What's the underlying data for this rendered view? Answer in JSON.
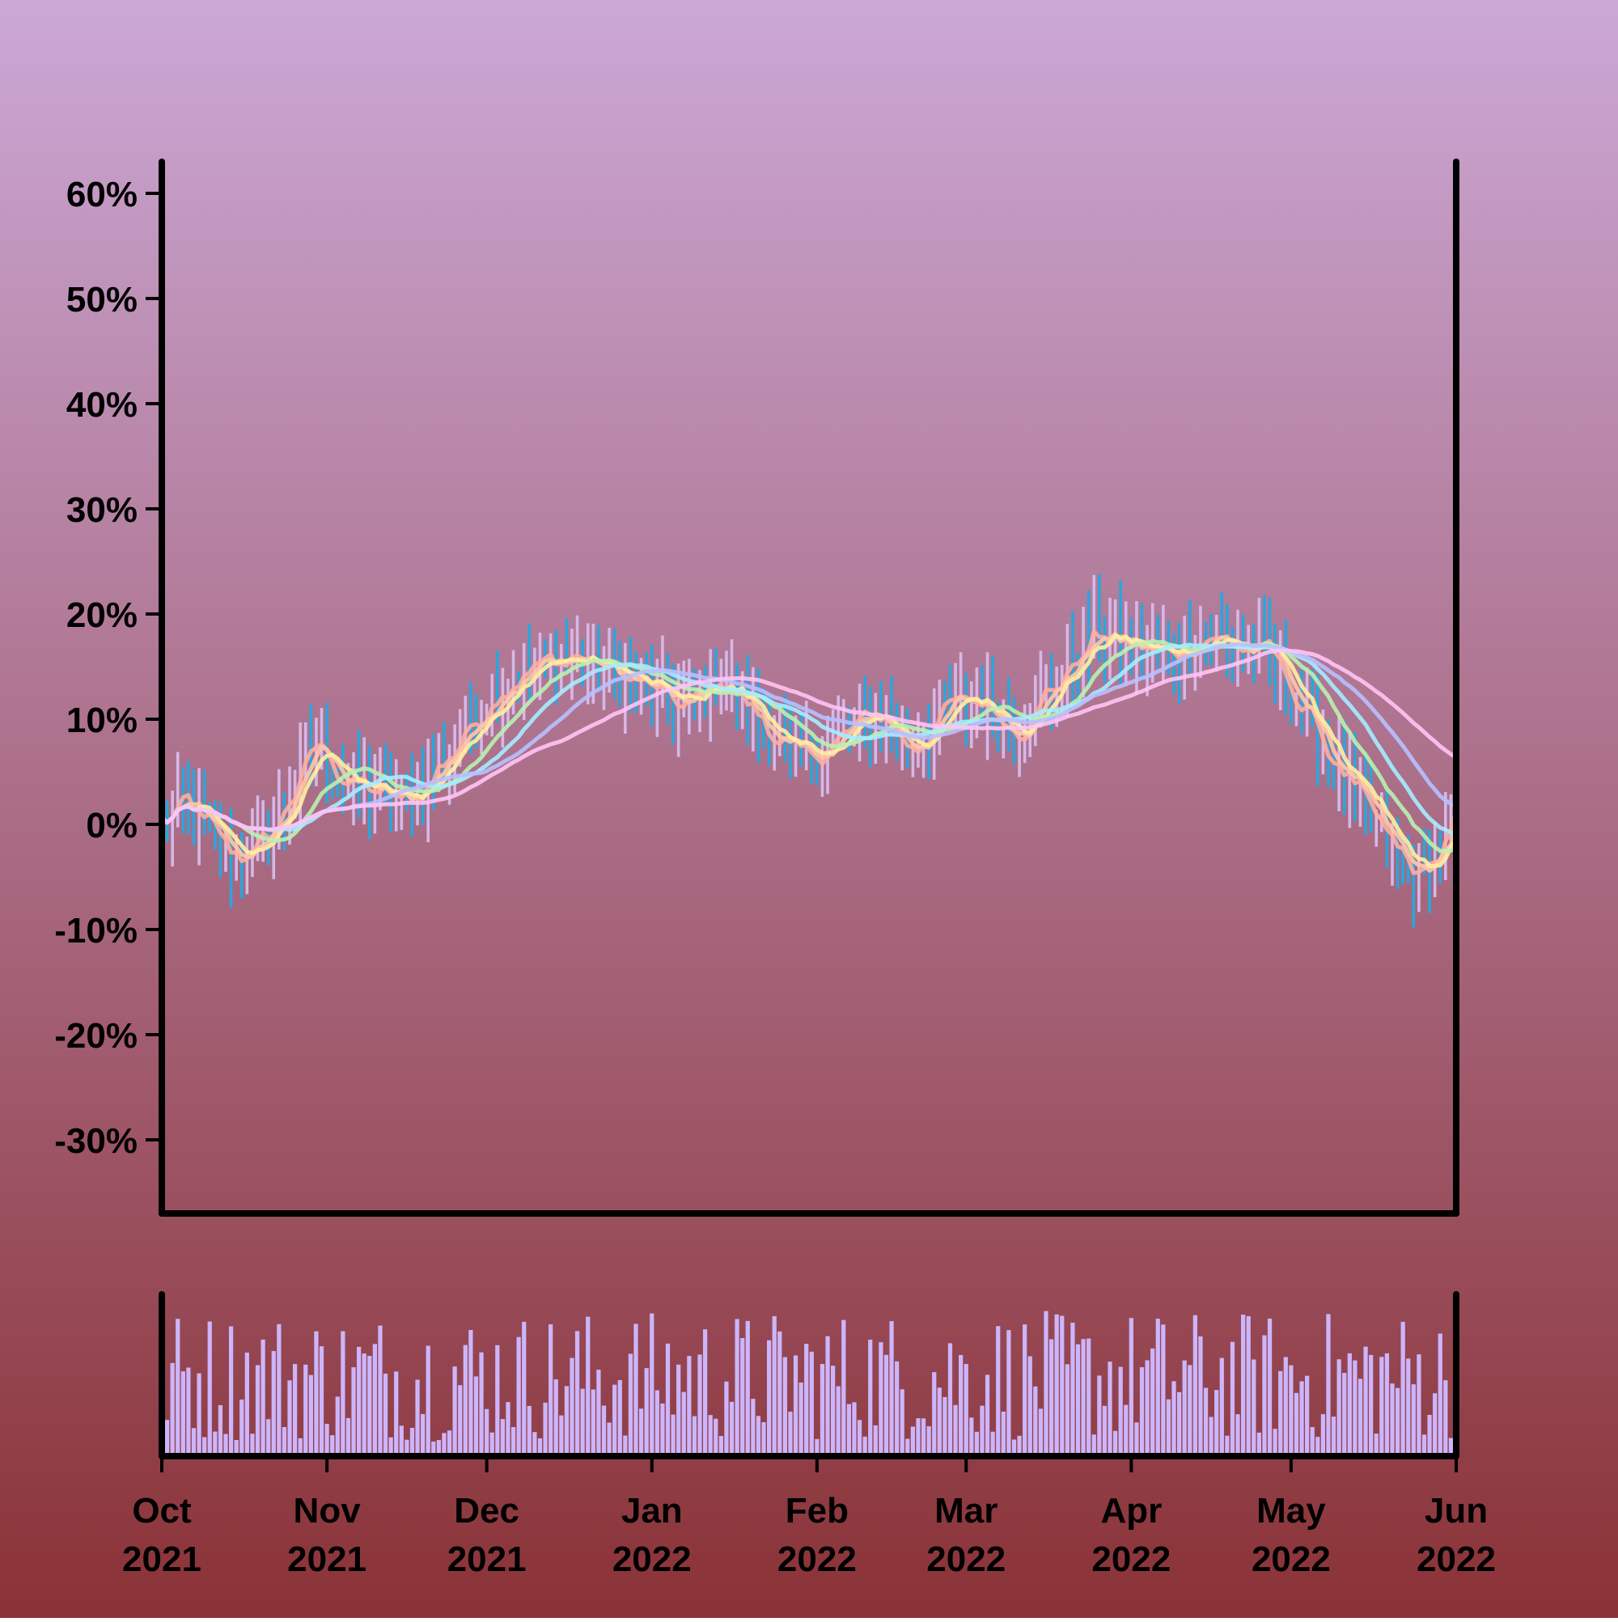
{
  "colors": {
    "background_top": "#cba8d6",
    "background_bottom": "#8a3236",
    "up_bar": "#d5b8e8",
    "down_bar": "#2aa6dc",
    "volume_bar": "#ccb5fb",
    "axis": "#000000",
    "ma_lines": [
      "#ffaea0",
      "#ffc8a8",
      "#fff0a0",
      "#b8f2b0",
      "#a6ecff",
      "#b8c0ff",
      "#ffc4f4"
    ]
  },
  "chart_data": [
    {
      "type": "candlestick",
      "title": "",
      "xlabel": "",
      "ylabel": "",
      "y_unit": "%",
      "ylim": [
        -37,
        63
      ],
      "xlim": [
        "2021-10-01",
        "2022-06-01"
      ],
      "grid": false,
      "y_ticks": [
        "-30%",
        "-20%",
        "-10%",
        "0%",
        "10%",
        "20%",
        "30%",
        "40%",
        "50%",
        "60%"
      ],
      "y_tick_values": [
        -30,
        -20,
        -10,
        0,
        10,
        20,
        30,
        40,
        50,
        60
      ],
      "price_anchors": [
        {
          "date": "2021-10-01",
          "value": 0
        },
        {
          "date": "2021-10-05",
          "value": 2
        },
        {
          "date": "2021-10-14",
          "value": -3
        },
        {
          "date": "2021-10-20",
          "value": -2
        },
        {
          "date": "2021-10-26",
          "value": 4
        },
        {
          "date": "2021-10-30",
          "value": 8
        },
        {
          "date": "2021-11-04",
          "value": 4
        },
        {
          "date": "2021-11-10",
          "value": 3
        },
        {
          "date": "2021-11-16",
          "value": 2
        },
        {
          "date": "2021-11-24",
          "value": 7
        },
        {
          "date": "2021-12-03",
          "value": 13
        },
        {
          "date": "2021-12-10",
          "value": 15
        },
        {
          "date": "2021-12-17",
          "value": 16
        },
        {
          "date": "2021-12-27",
          "value": 14
        },
        {
          "date": "2022-01-07",
          "value": 11
        },
        {
          "date": "2022-01-13",
          "value": 14
        },
        {
          "date": "2022-01-21",
          "value": 10
        },
        {
          "date": "2022-01-28",
          "value": 6
        },
        {
          "date": "2022-02-05",
          "value": 8
        },
        {
          "date": "2022-02-12",
          "value": 11
        },
        {
          "date": "2022-02-18",
          "value": 7
        },
        {
          "date": "2022-02-25",
          "value": 11
        },
        {
          "date": "2022-03-03",
          "value": 12
        },
        {
          "date": "2022-03-10",
          "value": 9
        },
        {
          "date": "2022-03-17",
          "value": 13
        },
        {
          "date": "2022-03-25",
          "value": 18
        },
        {
          "date": "2022-04-01",
          "value": 17
        },
        {
          "date": "2022-04-08",
          "value": 16
        },
        {
          "date": "2022-04-14",
          "value": 18
        },
        {
          "date": "2022-04-20",
          "value": 17
        },
        {
          "date": "2022-04-27",
          "value": 16
        },
        {
          "date": "2022-05-04",
          "value": 10
        },
        {
          "date": "2022-05-11",
          "value": 4
        },
        {
          "date": "2022-05-18",
          "value": -1
        },
        {
          "date": "2022-05-24",
          "value": -5
        },
        {
          "date": "2022-05-28",
          "value": -3
        },
        {
          "date": "2022-06-01",
          "value": 1
        }
      ],
      "moving_averages": [
        {
          "window": 3
        },
        {
          "window": 5
        },
        {
          "window": 7
        },
        {
          "window": 14
        },
        {
          "window": 21
        },
        {
          "window": 30
        },
        {
          "window": 45
        }
      ]
    },
    {
      "type": "bar",
      "title": "",
      "note": "volume sub-panel, no y scale shown",
      "x_ticks": [
        {
          "month": "Oct",
          "year": "2021"
        },
        {
          "month": "Nov",
          "year": "2021"
        },
        {
          "month": "Dec",
          "year": "2021"
        },
        {
          "month": "Jan",
          "year": "2022"
        },
        {
          "month": "Feb",
          "year": "2022"
        },
        {
          "month": "Mar",
          "year": "2022"
        },
        {
          "month": "Apr",
          "year": "2022"
        },
        {
          "month": "May",
          "year": "2022"
        },
        {
          "month": "Jun",
          "year": "2022"
        }
      ],
      "x_tick_dates": [
        "2021-10-01",
        "2021-11-01",
        "2021-12-01",
        "2022-01-01",
        "2022-02-01",
        "2022-03-01",
        "2022-04-01",
        "2022-05-01",
        "2022-06-01"
      ]
    }
  ]
}
